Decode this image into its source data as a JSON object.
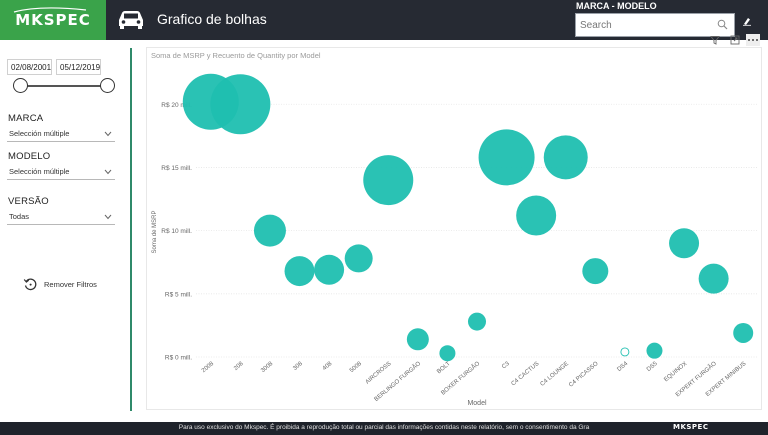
{
  "header": {
    "logo_text": "MKSPEC",
    "page_title": "Grafico de bolhas",
    "filter_label": "MARCA - MODELO",
    "search_placeholder": "Search"
  },
  "left_pane": {
    "date_start": "02/08/2001",
    "date_end": "05/12/2019",
    "marca_label": "MARCA",
    "marca_value": "Selección múltiple",
    "modelo_label": "MODELO",
    "modelo_value": "Selección múltiple",
    "versao_label": "VERSÃO",
    "versao_value": "Todas",
    "reset_label": "Remover Filtros"
  },
  "footer": {
    "text": "Para uso exclusivo do Mkspec. É proibida a reprodução total ou parcial das informações contidas neste relatório, sem o consentimento da Gra",
    "logo_text": "MKSPEC"
  },
  "colors": {
    "bubble": "#1fbfb0",
    "bubble_dark": "#17a99b",
    "brand_green": "#3aa34a",
    "header_bg": "#262a33"
  },
  "chart_data": {
    "type": "scatter",
    "title": "Soma de MSRP y Recuento de Quantity por Model",
    "xlabel": "Model",
    "ylabel": "Soma de MSRP",
    "ylim": [
      0,
      22
    ],
    "y_ticks": [
      {
        "value": 0,
        "label": "R$ 0 mill."
      },
      {
        "value": 5,
        "label": "R$ 5 mill."
      },
      {
        "value": 10,
        "label": "R$ 10 mill."
      },
      {
        "value": 15,
        "label": "R$ 15 mill."
      },
      {
        "value": 20,
        "label": "R$ 20 mill."
      }
    ],
    "categories": [
      "2008",
      "208",
      "3008",
      "308",
      "408",
      "5008",
      "AIRCROSS",
      "BERLINGO FURGÃO",
      "BOLT",
      "BOXER FURGÃO",
      "C3",
      "C4 CACTUS",
      "C4 LOUNGE",
      "C4 PICASSO",
      "DS4",
      "DS5",
      "EQUINOX",
      "EXPERT FURGÃO",
      "EXPERT MINIBUS"
    ],
    "points": [
      {
        "model": "2008",
        "x": 0.5,
        "y": 20.2,
        "size": 28
      },
      {
        "model": "208",
        "x": 1.5,
        "y": 20.0,
        "size": 30
      },
      {
        "model": "3008",
        "x": 2.5,
        "y": 10.0,
        "size": 16
      },
      {
        "model": "308",
        "x": 3.5,
        "y": 6.8,
        "size": 15
      },
      {
        "model": "408",
        "x": 4.5,
        "y": 6.9,
        "size": 15
      },
      {
        "model": "5008",
        "x": 5.5,
        "y": 7.8,
        "size": 14
      },
      {
        "model": "AIRCROSS",
        "x": 6.5,
        "y": 14.0,
        "size": 25
      },
      {
        "model": "BERLINGO FURGÃO",
        "x": 7.5,
        "y": 1.4,
        "size": 11
      },
      {
        "model": "BOLT",
        "x": 8.5,
        "y": 0.3,
        "size": 8
      },
      {
        "model": "BOXER FURGÃO",
        "x": 9.5,
        "y": 2.8,
        "size": 9
      },
      {
        "model": "C3",
        "x": 10.5,
        "y": 15.8,
        "size": 28
      },
      {
        "model": "C4 CACTUS",
        "x": 11.5,
        "y": 11.2,
        "size": 20
      },
      {
        "model": "C4 LOUNGE",
        "x": 12.5,
        "y": 15.8,
        "size": 22
      },
      {
        "model": "C4 PICASSO",
        "x": 13.5,
        "y": 6.8,
        "size": 13
      },
      {
        "model": "DS4",
        "x": 14.5,
        "y": 0.4,
        "size": 4,
        "hollow": true
      },
      {
        "model": "DS5",
        "x": 15.5,
        "y": 0.5,
        "size": 8
      },
      {
        "model": "EQUINOX",
        "x": 16.5,
        "y": 9.0,
        "size": 15
      },
      {
        "model": "EXPERT FURGÃO",
        "x": 17.5,
        "y": 6.2,
        "size": 15
      },
      {
        "model": "EXPERT MINIBUS",
        "x": 18.5,
        "y": 1.9,
        "size": 10
      }
    ]
  }
}
